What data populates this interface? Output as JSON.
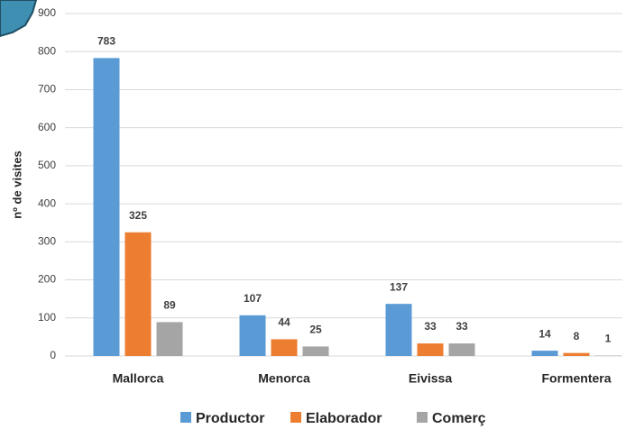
{
  "chart_data": {
    "type": "bar",
    "y_label": "nº de visites",
    "categories": [
      "Mallorca",
      "Menorca",
      "Eivissa",
      "Formentera"
    ],
    "series": [
      {
        "name": "Productor",
        "color": "#5b9bd5",
        "values": [
          783,
          107,
          137,
          14
        ]
      },
      {
        "name": "Elaborador",
        "color": "#ed7d31",
        "values": [
          325,
          44,
          33,
          8
        ]
      },
      {
        "name": "Comerç",
        "color": "#a5a5a5",
        "values": [
          89,
          25,
          33,
          1
        ]
      }
    ],
    "ylim": [
      0,
      900
    ],
    "yticks": [
      0,
      100,
      200,
      300,
      400,
      500,
      600,
      700,
      800,
      900
    ],
    "grid": true
  }
}
